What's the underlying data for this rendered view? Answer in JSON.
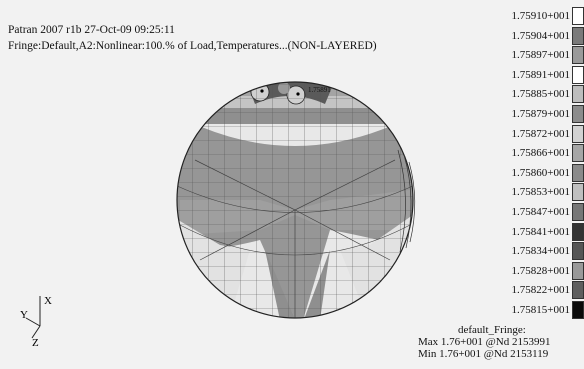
{
  "header": {
    "line1": "Patran 2007 r1b 27-Oct-09 09:25:11",
    "line2": "Fringe:Default,A2:Nonlinear:100.% of Load,Temperatures...(NON-LAYERED)"
  },
  "legend": {
    "items": [
      {
        "label": "1.75910+001",
        "color": "#ffffff"
      },
      {
        "label": "1.75904+001",
        "color": "#7a7a7a"
      },
      {
        "label": "1.75897+001",
        "color": "#9a9a9a"
      },
      {
        "label": "1.75891+001",
        "color": "#ffffff"
      },
      {
        "label": "1.75885+001",
        "color": "#bdbdbd"
      },
      {
        "label": "1.75879+001",
        "color": "#8c8c8c"
      },
      {
        "label": "1.75872+001",
        "color": "#d2d2d2"
      },
      {
        "label": "1.75866+001",
        "color": "#a6a6a6"
      },
      {
        "label": "1.75860+001",
        "color": "#8a8a8a"
      },
      {
        "label": "1.75853+001",
        "color": "#bfbfbf"
      },
      {
        "label": "1.75847+001",
        "color": "#777777"
      },
      {
        "label": "1.75841+001",
        "color": "#333333"
      },
      {
        "label": "1.75834+001",
        "color": "#555555"
      },
      {
        "label": "1.75828+001",
        "color": "#999999"
      },
      {
        "label": "1.75822+001",
        "color": "#5e5e5e"
      },
      {
        "label": "1.75815+001",
        "color": "#0a0a0a"
      }
    ]
  },
  "footer": {
    "title": "default_Fringe:",
    "max": "Max 1.76+001 @Nd 2153991",
    "min": "Min 1.76+001 @Nd 2153119"
  },
  "triad": {
    "x": "X",
    "y": "Y",
    "z": "Z"
  },
  "model": {
    "marker": "1.75891"
  }
}
